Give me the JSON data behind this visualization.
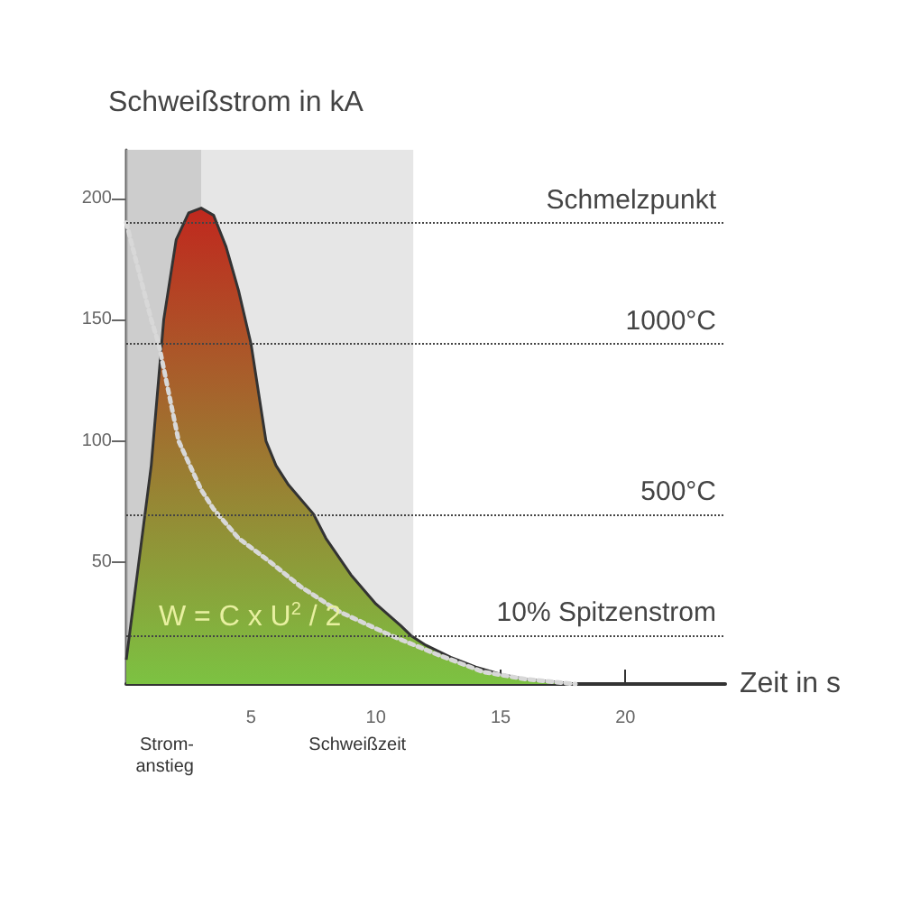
{
  "chart_data": {
    "type": "area",
    "ylabel": "Schweißstrom in kA",
    "xlabel": "Zeit in s",
    "xlim": [
      0,
      24
    ],
    "xticks": [
      5,
      10,
      15,
      20
    ],
    "ylim": [
      0,
      220
    ],
    "yticks": [
      50,
      100,
      150,
      200
    ],
    "series": [
      {
        "type": "area",
        "color": "#c0281e",
        "x": [
          0,
          1,
          1.5,
          2,
          2.5,
          3,
          3.5,
          4,
          4.5,
          5,
          5.6,
          6,
          6.5,
          7,
          7.5,
          8,
          9,
          10,
          11,
          11.4,
          12,
          13,
          14,
          15,
          16,
          17,
          18
        ],
        "values": [
          10,
          90,
          150,
          183,
          194,
          196,
          193,
          180,
          162,
          140,
          100,
          90,
          82,
          76,
          70,
          60,
          45,
          33,
          24,
          20,
          16,
          11,
          7,
          4,
          2,
          1,
          0
        ]
      },
      {
        "type": "line",
        "color": "#d8d8d8",
        "line_style": "dotted",
        "x": [
          0,
          0.5,
          1,
          1.3,
          2.1,
          3,
          3.5,
          4.5,
          5.8,
          7,
          8.5,
          10.6,
          12.5,
          14.3,
          16,
          18
        ],
        "values": [
          190,
          170,
          150,
          140,
          100,
          80,
          72,
          60,
          50,
          40,
          30,
          20,
          12,
          5,
          2,
          0
        ]
      }
    ],
    "ref_lines": [
      {
        "axis": "y",
        "value": 190,
        "label": "Schmelzpunkt"
      },
      {
        "axis": "y",
        "value": 140,
        "label": "1000°C"
      },
      {
        "axis": "y",
        "value": 70,
        "label": "500°C"
      },
      {
        "axis": "y",
        "value": 20,
        "label": "10% Spitzenstrom"
      }
    ],
    "bands": [
      {
        "axis": "x",
        "from": 0,
        "to": 11.5,
        "label": "Schweißzeit",
        "color": "#c8c8c8"
      },
      {
        "axis": "x",
        "from": 0,
        "to": 3,
        "label": "Strom-\nanstieg",
        "color": "#b0b0b0"
      }
    ],
    "annotations": [
      "W = C x U$^{2}$ / 2"
    ],
    "grid": false,
    "marker": "none"
  }
}
